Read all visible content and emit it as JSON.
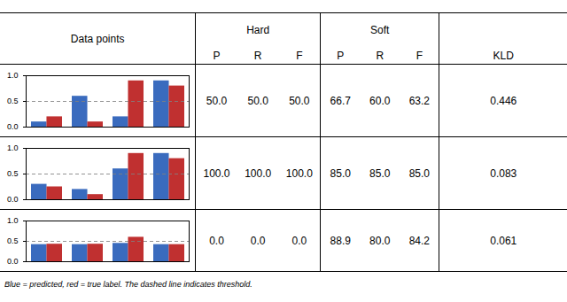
{
  "chart_data": [
    {
      "type": "bar",
      "categories": [
        null,
        null,
        null,
        null
      ],
      "series": [
        {
          "color": "#3A6BBE",
          "values": [
            0.1,
            0.6,
            0.2,
            0.9
          ]
        },
        {
          "color": "#C03030",
          "values": [
            0.2,
            0.1,
            0.9,
            0.8
          ]
        }
      ],
      "ylim": [
        0.0,
        1.0
      ],
      "yticks": [
        {
          "value": 0.0,
          "label": "0.0"
        },
        {
          "value": 0.5,
          "label": "0.5"
        },
        {
          "value": 1.0,
          "label": "1.0"
        }
      ],
      "threshold": 0.5,
      "tick_labels": "y"
    },
    {
      "type": "bar",
      "categories": [
        null,
        null,
        null,
        null
      ],
      "series": [
        {
          "color": "#3A6BBE",
          "values": [
            0.3,
            0.2,
            0.6,
            0.9
          ]
        },
        {
          "color": "#C03030",
          "values": [
            0.25,
            0.1,
            0.9,
            0.8
          ]
        }
      ],
      "ylim": [
        0.0,
        1.0
      ],
      "yticks": [
        {
          "value": 0.0,
          "label": "0.0"
        },
        {
          "value": 0.5,
          "label": "0.5"
        },
        {
          "value": 1.0,
          "label": "1.0"
        }
      ],
      "threshold": 0.5,
      "tick_labels": "y"
    },
    {
      "type": "bar",
      "categories": [
        null,
        null,
        null,
        null
      ],
      "series": [
        {
          "color": "#3A6BBE",
          "values": [
            0.42,
            0.42,
            0.45,
            0.42
          ]
        },
        {
          "color": "#C03030",
          "values": [
            0.43,
            0.43,
            0.6,
            0.42
          ]
        }
      ],
      "ylim": [
        0.0,
        1.0
      ],
      "yticks": [
        {
          "value": 0.0,
          "label": "0.0"
        },
        {
          "value": 0.5,
          "label": "0.5"
        },
        {
          "value": 1.0,
          "label": "1.0"
        }
      ],
      "threshold": 0.5,
      "tick_labels": "y"
    }
  ],
  "table": {
    "first_header": "Data points",
    "groups": [
      {
        "name": "Hard",
        "columns": [
          "P",
          "R",
          "F"
        ]
      },
      {
        "name": "Soft",
        "columns": [
          "P",
          "R",
          "F"
        ]
      }
    ],
    "last_column": "KLD",
    "rows": [
      {
        "groups": [
          [
            {
              "value": 50.0,
              "label": "50.0"
            },
            {
              "value": 50.0,
              "label": "50.0"
            },
            {
              "value": 50.0,
              "label": "50.0"
            }
          ],
          [
            {
              "value": 66.7,
              "label": "66.7"
            },
            {
              "value": 60.0,
              "label": "60.0"
            },
            {
              "value": 63.2,
              "label": "63.2"
            }
          ]
        ],
        "kld": 0.446
      },
      {
        "groups": [
          [
            {
              "value": 100.0,
              "label": "100.0"
            },
            {
              "value": 100.0,
              "label": "100.0"
            },
            {
              "value": 100.0,
              "label": "100.0"
            }
          ],
          [
            {
              "value": 85.0,
              "label": "85.0"
            },
            {
              "value": 85.0,
              "label": "85.0"
            },
            {
              "value": 85.0,
              "label": "85.0"
            }
          ]
        ],
        "kld": 0.083
      },
      {
        "groups": [
          [
            {
              "value": 0.0,
              "label": "0.0"
            },
            {
              "value": 0.0,
              "label": "0.0"
            },
            {
              "value": 0.0,
              "label": "0.0"
            }
          ],
          [
            {
              "value": 88.9,
              "label": "88.9"
            },
            {
              "value": 80.0,
              "label": "80.0"
            },
            {
              "value": 84.2,
              "label": "84.2"
            }
          ]
        ],
        "kld": 0.061
      }
    ]
  },
  "footnote": "Blue = predicted, red = true label. The dashed line indicates threshold."
}
